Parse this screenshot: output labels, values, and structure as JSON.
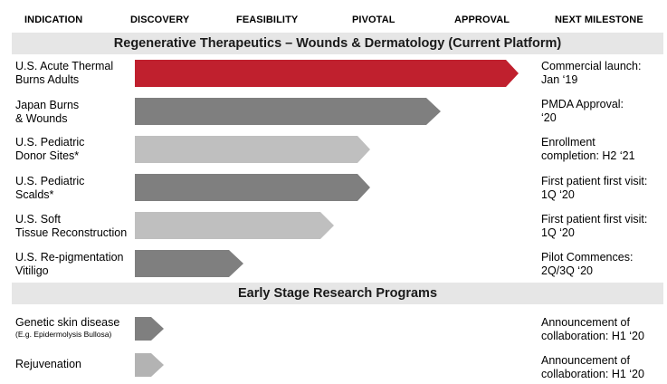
{
  "headers": {
    "indication": "INDICATION",
    "discovery": "DISCOVERY",
    "feasibility": "FEASIBILITY",
    "pivotal": "PIVOTAL",
    "approval": "APPROVAL",
    "next_milestone": "NEXT MILESTONE"
  },
  "sections": {
    "current": "Regenerative Therapeutics – Wounds & Dermatology (Current Platform)",
    "early": "Early Stage Research Programs"
  },
  "colors": {
    "red": "#c0202e",
    "dark_gray": "#7f7f7f",
    "light_gray": "#bfbfbf",
    "band": "#e6e6e6"
  },
  "programs": [
    {
      "line1": "U.S. Acute Thermal",
      "line2": "Burns Adults",
      "ms1": "Commercial launch:",
      "ms2": "Jan ‘19",
      "stage": "Approval",
      "color": "#c0202e"
    },
    {
      "line1": "Japan Burns",
      "line2": "& Wounds",
      "ms1": "PMDA Approval:",
      "ms2": "‘20",
      "stage": "Approval",
      "color": "#7f7f7f"
    },
    {
      "line1": "U.S. Pediatric",
      "line2": "Donor Sites*",
      "ms1": "Enrollment",
      "ms2": "completion: H2 ‘21",
      "stage": "Pivotal",
      "color": "#bfbfbf"
    },
    {
      "line1": "U.S. Pediatric",
      "line2": "Scalds*",
      "ms1": "First patient first visit:",
      "ms2": "1Q ‘20",
      "stage": "Pivotal",
      "color": "#7f7f7f"
    },
    {
      "line1": "U.S. Soft",
      "line2": "Tissue Reconstruction",
      "ms1": "First patient first visit:",
      "ms2": "1Q ‘20",
      "stage": "Pivotal",
      "color": "#bfbfbf"
    },
    {
      "line1": "U.S. Re-pigmentation",
      "line2": "Vitiligo",
      "ms1": "Pilot Commences:",
      "ms2": "2Q/3Q ‘20",
      "stage": "Feasibility",
      "color": "#7f7f7f"
    }
  ],
  "research": [
    {
      "line1": "Genetic skin disease",
      "sub": "(E.g. Epidermolysis Bullosa)",
      "ms1": "Announcement of",
      "ms2": "collaboration: H1 ‘20",
      "stage": "Discovery",
      "color": "#7f7f7f"
    },
    {
      "line1": "Rejuvenation",
      "sub": "",
      "ms1": "Announcement of",
      "ms2": "collaboration: H1 ‘20",
      "stage": "Discovery",
      "color": "#b3b3b3"
    }
  ]
}
